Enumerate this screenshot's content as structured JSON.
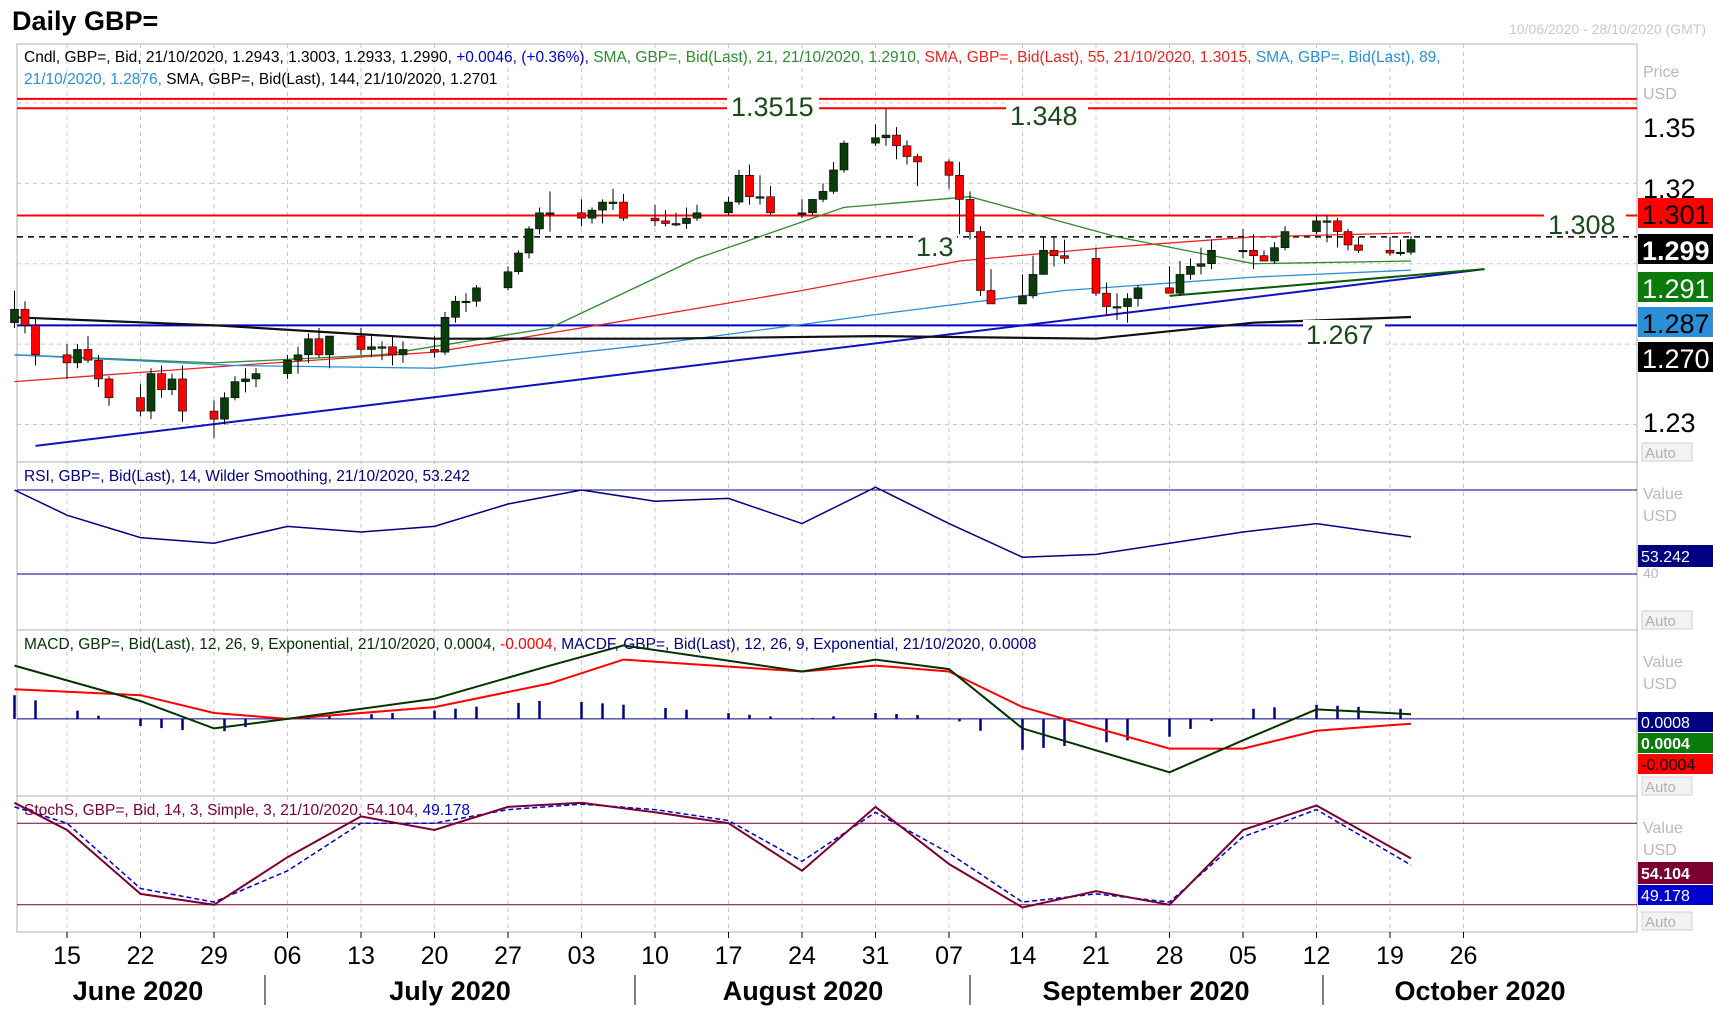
{
  "title": "Daily GBP=",
  "date_range": "10/06/2020 - 28/10/2020 (GMT)",
  "colors": {
    "price_up": "#0b3d0b",
    "price_down": "#ff0000",
    "sma21": "#2e8b2e",
    "sma55": "#ee2222",
    "sma89": "#2a8fd6",
    "sma144": "#111111",
    "level_red": "#ff0000",
    "level_blue": "#0000cc",
    "rsi": "#000080",
    "macd": "#003300",
    "macd_signal": "#ff0000",
    "stoch_k": "#7a0030",
    "stoch_d": "#0000cc"
  },
  "panels": {
    "price": {
      "legend": [
        {
          "text": "Cndl, GBP=, Bid, 21/10/2020, 1.2943, 1.3003, 1.2933, 1.2990, ",
          "color": "#000000"
        },
        {
          "text": "+0.0046, (+0.36%), ",
          "color": "#0000cc"
        },
        {
          "text": "SMA, GBP=, Bid(Last), 21, 21/10/2020, 1.2910, ",
          "color": "#2e8b2e"
        },
        {
          "text": "SMA, GBP=, Bid(Last), 55, 21/10/2020, 1.3015, ",
          "color": "#ee2222"
        },
        {
          "text": "SMA, GBP=, Bid(Last), 89,",
          "color": "#2a8fd6"
        }
      ],
      "legend2": [
        {
          "text": "21/10/2020, 1.2876, ",
          "color": "#2a8fd6"
        },
        {
          "text": "SMA, GBP=, Bid(Last), 144, 21/10/2020, 1.2701",
          "color": "#000000"
        }
      ],
      "axis_title": "Price",
      "axis_unit": "USD",
      "auto_label": "Auto",
      "ticks": [
        "1.35",
        "1.32",
        "1.23"
      ],
      "badges": {
        "sma55": "1.301",
        "last": "1.299",
        "sma21": "1.291",
        "sma89": "1.287",
        "sma144": "1.270"
      },
      "level_labels": {
        "l1": "1.3515",
        "l2": "1.348",
        "l3": "1.308",
        "l4": "1.3",
        "l5": "1.267"
      }
    },
    "rsi": {
      "legend": "RSI, GBP=, Bid(Last), 14, Wilder Smoothing, 21/10/2020, 53.242",
      "axis_title": "Value",
      "axis_unit": "USD",
      "badge": "53.242",
      "tick": "40",
      "auto_label": "Auto"
    },
    "macd": {
      "legend": [
        {
          "text": "MACD, GBP=, Bid(Last), 12, 26, 9, Exponential, 21/10/2020, 0.0004, ",
          "color": "#003300"
        },
        {
          "text": "-0.0004, ",
          "color": "#ff0000"
        },
        {
          "text": "MACDF, GBP=, Bid(Last), 12, 26, 9, Exponential, 21/10/2020, 0.0008",
          "color": "#000080"
        }
      ],
      "axis_title": "Value",
      "axis_unit": "USD",
      "badges": {
        "hist": "0.0008",
        "macd": "0.0004",
        "signal": "-0.0004"
      },
      "auto_label": "Auto"
    },
    "stoch": {
      "legend": [
        {
          "text": "StochS, GBP=, Bid, 14, 3, Simple, 3, 21/10/2020, 54.104, ",
          "color": "#7a0030"
        },
        {
          "text": "49.178",
          "color": "#0000cc"
        }
      ],
      "axis_title": "Value",
      "axis_unit": "USD",
      "badges": {
        "k": "54.104",
        "d": "49.178"
      },
      "auto_label": "Auto"
    }
  },
  "x_axis": {
    "days": [
      "15",
      "22",
      "29",
      "06",
      "13",
      "20",
      "27",
      "03",
      "10",
      "17",
      "24",
      "31",
      "07",
      "14",
      "21",
      "28",
      "05",
      "12",
      "19",
      "26"
    ],
    "months": [
      "June 2020",
      "July 2020",
      "August 2020",
      "September 2020",
      "October 2020"
    ]
  },
  "chart_data": [
    {
      "type": "candlestick",
      "series_name": "GBP=",
      "period": "daily",
      "ylim": [
        1.216,
        1.372
      ],
      "x": [
        "2020-06-10",
        "2020-06-11",
        "2020-06-12",
        "2020-06-15",
        "2020-06-16",
        "2020-06-17",
        "2020-06-18",
        "2020-06-19",
        "2020-06-22",
        "2020-06-23",
        "2020-06-24",
        "2020-06-25",
        "2020-06-26",
        "2020-06-29",
        "2020-06-30",
        "2020-07-01",
        "2020-07-02",
        "2020-07-03",
        "2020-07-06",
        "2020-07-07",
        "2020-07-08",
        "2020-07-09",
        "2020-07-10",
        "2020-07-13",
        "2020-07-14",
        "2020-07-15",
        "2020-07-16",
        "2020-07-17",
        "2020-07-20",
        "2020-07-21",
        "2020-07-22",
        "2020-07-23",
        "2020-07-24",
        "2020-07-27",
        "2020-07-28",
        "2020-07-29",
        "2020-07-30",
        "2020-07-31",
        "2020-08-03",
        "2020-08-04",
        "2020-08-05",
        "2020-08-06",
        "2020-08-07",
        "2020-08-10",
        "2020-08-11",
        "2020-08-12",
        "2020-08-13",
        "2020-08-14",
        "2020-08-17",
        "2020-08-18",
        "2020-08-19",
        "2020-08-20",
        "2020-08-21",
        "2020-08-24",
        "2020-08-25",
        "2020-08-26",
        "2020-08-27",
        "2020-08-28",
        "2020-08-31",
        "2020-09-01",
        "2020-09-02",
        "2020-09-03",
        "2020-09-04",
        "2020-09-07",
        "2020-09-08",
        "2020-09-09",
        "2020-09-10",
        "2020-09-11",
        "2020-09-14",
        "2020-09-15",
        "2020-09-16",
        "2020-09-17",
        "2020-09-18",
        "2020-09-21",
        "2020-09-22",
        "2020-09-23",
        "2020-09-24",
        "2020-09-25",
        "2020-09-28",
        "2020-09-29",
        "2020-09-30",
        "2020-10-01",
        "2020-10-02",
        "2020-10-05",
        "2020-10-06",
        "2020-10-07",
        "2020-10-08",
        "2020-10-09",
        "2020-10-12",
        "2020-10-13",
        "2020-10-14",
        "2020-10-15",
        "2020-10-16",
        "2020-10-19",
        "2020-10-20",
        "2020-10-21"
      ],
      "open": [
        1.268,
        1.273,
        1.267,
        1.256,
        1.253,
        1.258,
        1.254,
        1.247,
        1.24,
        1.235,
        1.249,
        1.243,
        1.247,
        1.235,
        1.232,
        1.24,
        1.246,
        1.247,
        1.249,
        1.254,
        1.256,
        1.262,
        1.256,
        1.263,
        1.258,
        1.259,
        1.259,
        1.256,
        1.258,
        1.257,
        1.27,
        1.276,
        1.276,
        1.281,
        1.287,
        1.294,
        1.303,
        1.309,
        1.309,
        1.307,
        1.31,
        1.313,
        1.313,
        1.307,
        1.306,
        1.305,
        1.305,
        1.307,
        1.309,
        1.313,
        1.323,
        1.315,
        1.315,
        1.309,
        1.309,
        1.314,
        1.317,
        1.325,
        1.335,
        1.337,
        1.338,
        1.334,
        1.33,
        1.328,
        1.323,
        1.314,
        1.302,
        1.28,
        1.275,
        1.278,
        1.286,
        1.295,
        1.293,
        1.292,
        1.279,
        1.274,
        1.274,
        1.277,
        1.281,
        1.279,
        1.286,
        1.289,
        1.29,
        1.295,
        1.295,
        1.293,
        1.291,
        1.296,
        1.302,
        1.306,
        1.306,
        1.302,
        1.297,
        1.295,
        1.294,
        1.2943
      ],
      "high": [
        1.28,
        1.276,
        1.27,
        1.26,
        1.26,
        1.263,
        1.256,
        1.248,
        1.245,
        1.251,
        1.252,
        1.249,
        1.252,
        1.239,
        1.242,
        1.248,
        1.251,
        1.251,
        1.256,
        1.259,
        1.264,
        1.266,
        1.263,
        1.266,
        1.263,
        1.261,
        1.263,
        1.261,
        1.263,
        1.272,
        1.278,
        1.279,
        1.282,
        1.289,
        1.295,
        1.304,
        1.311,
        1.317,
        1.314,
        1.311,
        1.314,
        1.318,
        1.316,
        1.312,
        1.31,
        1.309,
        1.311,
        1.312,
        1.315,
        1.325,
        1.327,
        1.323,
        1.319,
        1.314,
        1.314,
        1.32,
        1.328,
        1.336,
        1.342,
        1.348,
        1.341,
        1.336,
        1.331,
        1.329,
        1.328,
        1.317,
        1.304,
        1.288,
        1.286,
        1.293,
        1.3,
        1.3,
        1.299,
        1.296,
        1.283,
        1.279,
        1.279,
        1.282,
        1.289,
        1.291,
        1.292,
        1.296,
        1.299,
        1.303,
        1.301,
        1.295,
        1.298,
        1.304,
        1.308,
        1.308,
        1.307,
        1.303,
        1.3,
        1.3,
        1.299,
        1.3003
      ],
      "low": [
        1.266,
        1.264,
        1.252,
        1.247,
        1.251,
        1.253,
        1.244,
        1.237,
        1.233,
        1.232,
        1.24,
        1.241,
        1.231,
        1.225,
        1.23,
        1.239,
        1.242,
        1.244,
        1.247,
        1.249,
        1.253,
        1.255,
        1.251,
        1.256,
        1.255,
        1.254,
        1.252,
        1.253,
        1.255,
        1.256,
        1.268,
        1.272,
        1.274,
        1.28,
        1.286,
        1.292,
        1.301,
        1.302,
        1.304,
        1.305,
        1.305,
        1.31,
        1.306,
        1.304,
        1.304,
        1.304,
        1.303,
        1.306,
        1.308,
        1.312,
        1.312,
        1.312,
        1.308,
        1.307,
        1.308,
        1.313,
        1.316,
        1.324,
        1.334,
        1.334,
        1.329,
        1.327,
        1.319,
        1.318,
        1.301,
        1.299,
        1.278,
        1.276,
        1.276,
        1.277,
        1.286,
        1.289,
        1.29,
        1.278,
        1.271,
        1.269,
        1.268,
        1.274,
        1.28,
        1.278,
        1.284,
        1.286,
        1.288,
        1.292,
        1.288,
        1.291,
        1.29,
        1.295,
        1.301,
        1.298,
        1.296,
        1.295,
        1.294,
        1.293,
        1.293,
        1.2933
      ],
      "close": [
        1.273,
        1.267,
        1.256,
        1.253,
        1.258,
        1.254,
        1.247,
        1.24,
        1.235,
        1.249,
        1.243,
        1.247,
        1.235,
        1.232,
        1.24,
        1.246,
        1.247,
        1.249,
        1.254,
        1.256,
        1.262,
        1.256,
        1.263,
        1.258,
        1.259,
        1.259,
        1.256,
        1.258,
        1.257,
        1.27,
        1.276,
        1.276,
        1.281,
        1.287,
        1.294,
        1.303,
        1.309,
        1.309,
        1.307,
        1.31,
        1.313,
        1.313,
        1.307,
        1.306,
        1.305,
        1.305,
        1.307,
        1.309,
        1.313,
        1.323,
        1.315,
        1.315,
        1.309,
        1.309,
        1.314,
        1.317,
        1.325,
        1.335,
        1.337,
        1.338,
        1.334,
        1.33,
        1.328,
        1.323,
        1.314,
        1.302,
        1.28,
        1.275,
        1.278,
        1.286,
        1.295,
        1.293,
        1.292,
        1.279,
        1.274,
        1.274,
        1.277,
        1.281,
        1.279,
        1.286,
        1.289,
        1.29,
        1.295,
        1.295,
        1.293,
        1.291,
        1.296,
        1.302,
        1.306,
        1.306,
        1.302,
        1.297,
        1.295,
        1.294,
        1.2943,
        1.299
      ],
      "moving_averages": [
        {
          "name": "SMA 21",
          "x": [
            "2020-06-10",
            "2020-06-29",
            "2020-07-15",
            "2020-07-31",
            "2020-08-14",
            "2020-08-28",
            "2020-09-09",
            "2020-09-23",
            "2020-10-06",
            "2020-10-21"
          ],
          "values": [
            1.256,
            1.253,
            1.256,
            1.266,
            1.292,
            1.311,
            1.315,
            1.3,
            1.29,
            1.291
          ]
        },
        {
          "name": "SMA 55",
          "x": [
            "2020-06-10",
            "2020-07-01",
            "2020-07-20",
            "2020-08-06",
            "2020-08-24",
            "2020-09-08",
            "2020-09-22",
            "2020-10-06",
            "2020-10-21"
          ],
          "values": [
            1.246,
            1.252,
            1.257,
            1.268,
            1.28,
            1.291,
            1.296,
            1.3,
            1.3015
          ]
        },
        {
          "name": "SMA 89",
          "x": [
            "2020-06-10",
            "2020-07-01",
            "2020-07-20",
            "2020-08-10",
            "2020-08-31",
            "2020-09-18",
            "2020-10-06",
            "2020-10-21"
          ],
          "values": [
            1.256,
            1.252,
            1.251,
            1.26,
            1.271,
            1.28,
            1.285,
            1.2876
          ]
        },
        {
          "name": "SMA 144",
          "x": [
            "2020-06-10",
            "2020-06-29",
            "2020-07-20",
            "2020-08-10",
            "2020-08-31",
            "2020-09-21",
            "2020-10-06",
            "2020-10-21"
          ],
          "values": [
            1.27,
            1.267,
            1.262,
            1.262,
            1.263,
            1.262,
            1.268,
            1.2701
          ]
        }
      ],
      "horizontal_levels": [
        {
          "label": "1.3515",
          "value": 1.3515,
          "color": "red"
        },
        {
          "label": "1.348",
          "value": 1.348,
          "color": "red"
        },
        {
          "label": "1.308",
          "value": 1.308,
          "color": "red"
        },
        {
          "label": "1.3",
          "value": 1.3,
          "style": "dashed"
        },
        {
          "label": "1.267",
          "value": 1.267,
          "color": "blue"
        }
      ],
      "trendlines": [
        {
          "x": [
            "2020-06-12",
            "2020-10-28"
          ],
          "values": [
            1.222,
            1.288
          ]
        },
        {
          "x": [
            "2020-09-28",
            "2020-10-28"
          ],
          "values": [
            1.278,
            1.288
          ]
        }
      ]
    },
    {
      "type": "line",
      "series_name": "RSI 14",
      "ylim": [
        20,
        80
      ],
      "reference_levels": [
        40,
        70
      ],
      "x": [
        "2020-06-10",
        "2020-06-15",
        "2020-06-22",
        "2020-06-29",
        "2020-07-06",
        "2020-07-13",
        "2020-07-20",
        "2020-07-27",
        "2020-08-03",
        "2020-08-10",
        "2020-08-17",
        "2020-08-24",
        "2020-08-31",
        "2020-09-07",
        "2020-09-14",
        "2020-09-21",
        "2020-09-28",
        "2020-10-05",
        "2020-10-12",
        "2020-10-21"
      ],
      "values": [
        70,
        61,
        53,
        51,
        57,
        55,
        57,
        65,
        70,
        66,
        67,
        58,
        71,
        58,
        46,
        47,
        51,
        55,
        58,
        53.242
      ]
    },
    {
      "type": "line",
      "series_name": "MACD 12,26,9",
      "ylim": [
        -0.0065,
        0.0075
      ],
      "macd": {
        "x": [
          "2020-06-10",
          "2020-06-22",
          "2020-06-29",
          "2020-07-06",
          "2020-07-20",
          "2020-07-31",
          "2020-08-07",
          "2020-08-24",
          "2020-08-31",
          "2020-09-07",
          "2020-09-14",
          "2020-09-28",
          "2020-10-05",
          "2020-10-12",
          "2020-10-21"
        ],
        "values": [
          0.0045,
          0.0015,
          -0.0008,
          0.0,
          0.0017,
          0.0045,
          0.0062,
          0.004,
          0.005,
          0.0042,
          -0.0008,
          -0.0045,
          -0.0018,
          0.0008,
          0.0004
        ]
      },
      "signal": {
        "x": [
          "2020-06-10",
          "2020-06-22",
          "2020-06-29",
          "2020-07-06",
          "2020-07-20",
          "2020-07-31",
          "2020-08-07",
          "2020-08-24",
          "2020-08-31",
          "2020-09-07",
          "2020-09-14",
          "2020-09-28",
          "2020-10-05",
          "2020-10-12",
          "2020-10-21"
        ],
        "values": [
          0.0025,
          0.002,
          0.0005,
          0.0,
          0.001,
          0.003,
          0.005,
          0.004,
          0.0045,
          0.004,
          0.001,
          -0.0025,
          -0.0025,
          -0.001,
          -0.0004
        ]
      },
      "histogram": {
        "x": [
          "2020-06-10",
          "2020-06-22",
          "2020-06-29",
          "2020-07-06",
          "2020-07-20",
          "2020-07-31",
          "2020-08-07",
          "2020-08-24",
          "2020-08-31",
          "2020-09-07",
          "2020-09-14",
          "2020-09-28",
          "2020-10-05",
          "2020-10-12",
          "2020-10-21"
        ],
        "values": [
          0.002,
          -0.0006,
          -0.0012,
          0.0,
          0.0007,
          0.0016,
          0.0012,
          0.0,
          0.0005,
          0.0002,
          -0.0026,
          -0.0015,
          0.0008,
          0.0012,
          0.0008
        ]
      }
    },
    {
      "type": "line",
      "series_name": "Stochastic 14,3,3",
      "ylim": [
        0,
        100
      ],
      "reference_levels": [
        20,
        80
      ],
      "k": {
        "x": [
          "2020-06-10",
          "2020-06-15",
          "2020-06-22",
          "2020-06-29",
          "2020-07-06",
          "2020-07-13",
          "2020-07-20",
          "2020-07-27",
          "2020-08-03",
          "2020-08-10",
          "2020-08-17",
          "2020-08-24",
          "2020-08-31",
          "2020-09-07",
          "2020-09-14",
          "2020-09-21",
          "2020-09-28",
          "2020-10-05",
          "2020-10-12",
          "2020-10-21"
        ],
        "values": [
          95,
          75,
          28,
          20,
          55,
          85,
          75,
          92,
          95,
          88,
          80,
          45,
          92,
          50,
          18,
          30,
          20,
          75,
          93,
          54.104
        ]
      },
      "d": {
        "x": [
          "2020-06-10",
          "2020-06-15",
          "2020-06-22",
          "2020-06-29",
          "2020-07-06",
          "2020-07-13",
          "2020-07-20",
          "2020-07-27",
          "2020-08-03",
          "2020-08-10",
          "2020-08-17",
          "2020-08-24",
          "2020-08-31",
          "2020-09-07",
          "2020-09-14",
          "2020-09-21",
          "2020-09-28",
          "2020-10-05",
          "2020-10-12",
          "2020-10-21"
        ],
        "values": [
          92,
          80,
          32,
          22,
          45,
          80,
          80,
          90,
          94,
          90,
          82,
          52,
          88,
          58,
          22,
          28,
          22,
          70,
          90,
          49.178
        ]
      }
    }
  ]
}
